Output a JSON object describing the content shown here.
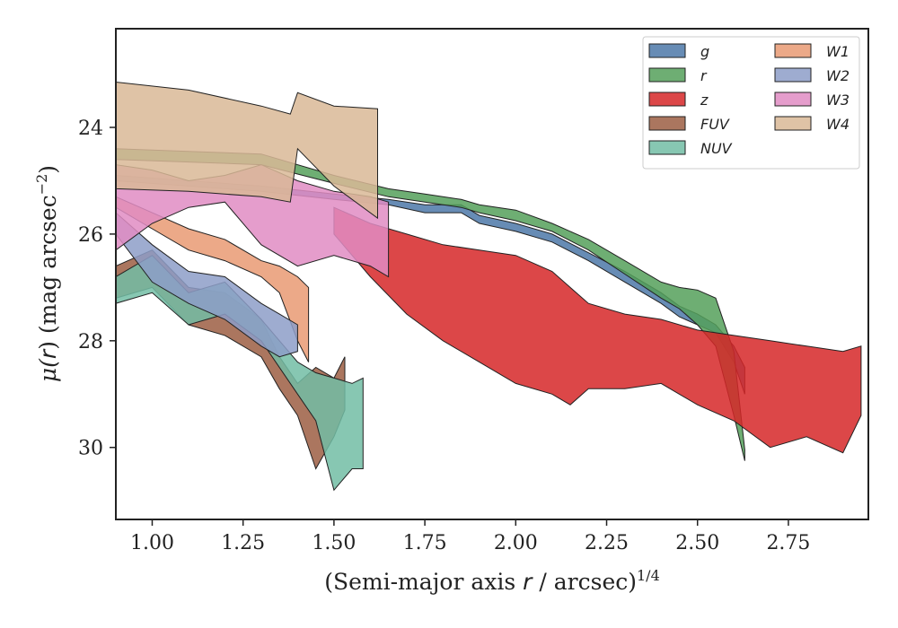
{
  "chart_data": {
    "type": "area",
    "xlabel": {
      "main": "(Semi-major axis ",
      "var": "r",
      "rest": " / arcsec)",
      "sup": "1/4"
    },
    "ylabel": {
      "mu": "μ(",
      "var": "r",
      "rest": ") (mag arcsec",
      "sup": "−2",
      "close": ")"
    },
    "xlim": [
      0.9,
      2.97
    ],
    "ylim": [
      31.35,
      22.15
    ],
    "y_inverted": true,
    "xticks": [
      1.0,
      1.25,
      1.5,
      1.75,
      2.0,
      2.25,
      2.5,
      2.75
    ],
    "xtick_labels": [
      "1.00",
      "1.25",
      "1.50",
      "1.75",
      "2.00",
      "2.25",
      "2.50",
      "2.75"
    ],
    "yticks": [
      24,
      26,
      28,
      30
    ],
    "ytick_labels": [
      "24",
      "26",
      "28",
      "30"
    ],
    "legend_position": "top-right",
    "legend_columns": 2,
    "series": [
      {
        "name": "g",
        "color": "#4c78a8",
        "x": [
          0.9,
          1.1,
          1.3,
          1.5,
          1.65,
          1.75,
          1.85,
          1.9,
          2.0,
          2.1,
          2.2,
          2.3,
          2.4,
          2.45,
          2.5,
          2.55,
          2.6,
          2.63
        ],
        "y_bright": [
          24.9,
          25.0,
          25.1,
          25.25,
          25.35,
          25.45,
          25.45,
          25.65,
          25.8,
          26.0,
          26.35,
          26.7,
          27.1,
          27.35,
          27.5,
          27.7,
          28.1,
          28.5
        ],
        "y_faint": [
          25.0,
          25.1,
          25.2,
          25.35,
          25.45,
          25.6,
          25.6,
          25.8,
          25.95,
          26.15,
          26.5,
          26.9,
          27.3,
          27.55,
          27.7,
          27.85,
          28.4,
          29.0
        ]
      },
      {
        "name": "r",
        "color": "#55a05a",
        "x": [
          0.9,
          1.1,
          1.3,
          1.5,
          1.65,
          1.75,
          1.85,
          1.9,
          2.0,
          2.1,
          2.2,
          2.3,
          2.4,
          2.45,
          2.5,
          2.55,
          2.6,
          2.63
        ],
        "y_bright": [
          24.4,
          24.45,
          24.5,
          24.9,
          25.15,
          25.25,
          25.35,
          25.45,
          25.55,
          25.8,
          26.1,
          26.5,
          26.9,
          27.0,
          27.05,
          27.2,
          28.2,
          30.05
        ],
        "y_faint": [
          24.6,
          24.65,
          24.7,
          25.05,
          25.3,
          25.4,
          25.5,
          25.6,
          25.75,
          25.95,
          26.3,
          26.75,
          27.2,
          27.4,
          27.7,
          28.1,
          29.4,
          30.25
        ]
      },
      {
        "name": "z",
        "color": "#d62728",
        "x": [
          1.5,
          1.6,
          1.7,
          1.8,
          1.9,
          2.0,
          2.1,
          2.15,
          2.2,
          2.3,
          2.4,
          2.5,
          2.6,
          2.7,
          2.8,
          2.9,
          2.95
        ],
        "y_bright": [
          25.5,
          25.8,
          26.0,
          26.2,
          26.3,
          26.4,
          26.7,
          27.0,
          27.3,
          27.5,
          27.6,
          27.8,
          27.9,
          28.0,
          28.1,
          28.2,
          28.1
        ],
        "y_faint": [
          26.0,
          26.8,
          27.5,
          28.0,
          28.4,
          28.8,
          29.0,
          29.2,
          28.9,
          28.9,
          28.8,
          29.2,
          29.5,
          30.0,
          29.8,
          30.1,
          29.4
        ]
      },
      {
        "name": "FUV",
        "color": "#9c5e43",
        "x": [
          0.9,
          1.0,
          1.1,
          1.2,
          1.3,
          1.35,
          1.4,
          1.45,
          1.5,
          1.53
        ],
        "y_bright": [
          26.6,
          26.3,
          27.0,
          27.1,
          27.6,
          28.3,
          28.8,
          28.5,
          28.7,
          28.3
        ],
        "y_faint": [
          27.2,
          27.0,
          27.7,
          27.9,
          28.3,
          28.9,
          29.4,
          30.4,
          29.8,
          29.3
        ]
      },
      {
        "name": "FUV",
        "color": "#9c5e43",
        "x": [],
        "y_bright": [],
        "y_faint": []
      },
      {
        "name": "NUV",
        "color": "#72bda5",
        "x": [
          0.9,
          1.0,
          1.1,
          1.2,
          1.3,
          1.4,
          1.45,
          1.5,
          1.55,
          1.58
        ],
        "y_bright": [
          26.8,
          26.4,
          27.1,
          26.9,
          27.6,
          28.4,
          28.6,
          28.7,
          28.8,
          28.7
        ],
        "y_faint": [
          27.3,
          27.1,
          27.7,
          27.5,
          28.0,
          29.0,
          29.5,
          30.8,
          30.4,
          30.4
        ]
      },
      {
        "name": "W1",
        "color": "#e99a73",
        "x": [
          0.9,
          1.0,
          1.1,
          1.2,
          1.3,
          1.35,
          1.4,
          1.43
        ],
        "y_bright": [
          25.3,
          25.6,
          25.9,
          26.1,
          26.5,
          26.6,
          26.8,
          27.0
        ],
        "y_faint": [
          25.5,
          25.9,
          26.3,
          26.5,
          26.8,
          27.1,
          28.0,
          28.4
        ]
      },
      {
        "name": "W2",
        "color": "#8d9ec8",
        "x": [
          0.9,
          1.0,
          1.1,
          1.2,
          1.3,
          1.35,
          1.4
        ],
        "y_bright": [
          25.6,
          26.2,
          26.7,
          26.8,
          27.3,
          27.5,
          27.7
        ],
        "y_faint": [
          26.0,
          26.9,
          27.3,
          27.6,
          28.1,
          28.3,
          28.2
        ]
      },
      {
        "name": "W3",
        "color": "#e08cc3",
        "x": [
          0.9,
          1.0,
          1.1,
          1.2,
          1.3,
          1.4,
          1.5,
          1.6,
          1.65
        ],
        "y_bright": [
          24.7,
          24.8,
          25.0,
          24.9,
          24.7,
          25.0,
          25.2,
          25.3,
          25.4
        ],
        "y_faint": [
          26.3,
          25.8,
          25.5,
          25.4,
          26.2,
          26.6,
          26.4,
          26.6,
          26.8
        ]
      },
      {
        "name": "W4",
        "color": "#d9b996",
        "x": [
          0.9,
          1.1,
          1.3,
          1.38,
          1.4,
          1.5,
          1.62
        ],
        "y_bright": [
          23.15,
          23.3,
          23.6,
          23.75,
          23.35,
          23.6,
          23.65
        ],
        "y_faint": [
          25.15,
          25.2,
          25.3,
          25.4,
          24.4,
          25.1,
          25.7
        ]
      }
    ]
  }
}
